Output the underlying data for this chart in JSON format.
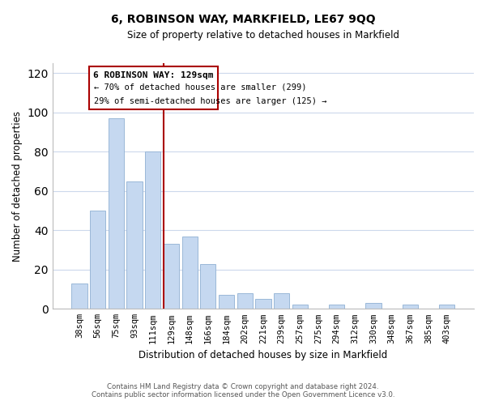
{
  "title": "6, ROBINSON WAY, MARKFIELD, LE67 9QQ",
  "subtitle": "Size of property relative to detached houses in Markfield",
  "xlabel": "Distribution of detached houses by size in Markfield",
  "ylabel": "Number of detached properties",
  "categories": [
    "38sqm",
    "56sqm",
    "75sqm",
    "93sqm",
    "111sqm",
    "129sqm",
    "148sqm",
    "166sqm",
    "184sqm",
    "202sqm",
    "221sqm",
    "239sqm",
    "257sqm",
    "275sqm",
    "294sqm",
    "312sqm",
    "330sqm",
    "348sqm",
    "367sqm",
    "385sqm",
    "403sqm"
  ],
  "values": [
    13,
    50,
    97,
    65,
    80,
    33,
    37,
    23,
    7,
    8,
    5,
    8,
    2,
    0,
    2,
    0,
    3,
    0,
    2,
    0,
    2
  ],
  "bar_color": "#c5d8f0",
  "bar_edge_color": "#9ab8d8",
  "vline_x_index": 5,
  "vline_color": "#aa0000",
  "ylim": [
    0,
    125
  ],
  "yticks": [
    0,
    20,
    40,
    60,
    80,
    100,
    120
  ],
  "annotation_title": "6 ROBINSON WAY: 129sqm",
  "annotation_line1": "← 70% of detached houses are smaller (299)",
  "annotation_line2": "29% of semi-detached houses are larger (125) →",
  "annotation_box_color": "#ffffff",
  "annotation_box_edge": "#aa0000",
  "footer_line1": "Contains HM Land Registry data © Crown copyright and database right 2024.",
  "footer_line2": "Contains public sector information licensed under the Open Government Licence v3.0.",
  "background_color": "#ffffff",
  "grid_color": "#ccd8ec"
}
